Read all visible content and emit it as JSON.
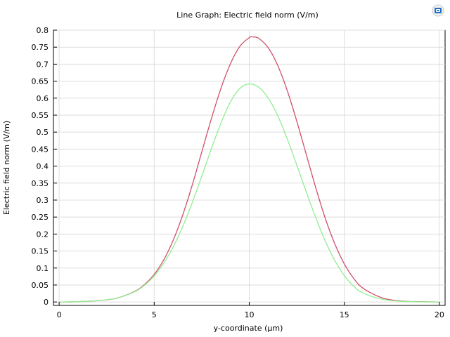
{
  "chart_data": {
    "type": "line",
    "title": "Line Graph: Electric field norm (V/m)",
    "xlabel": "y-coordinate (µm)",
    "ylabel": "Electric field norm (V/m)",
    "xlim": [
      -0.3,
      20.3
    ],
    "ylim": [
      -0.01,
      0.8
    ],
    "x_ticks": [
      0,
      5,
      10,
      15,
      20
    ],
    "y_ticks": [
      0,
      0.05,
      0.1,
      0.15,
      0.2,
      0.25,
      0.3,
      0.35,
      0.4,
      0.45,
      0.5,
      0.55,
      0.6,
      0.65,
      0.7,
      0.75,
      0.8
    ],
    "grid": true,
    "legend": "none",
    "series": [
      {
        "color": "#d0506a",
        "x": [
          0,
          1,
          2,
          3,
          4,
          4.5,
          5,
          5.5,
          6,
          6.5,
          7,
          7.5,
          8,
          8.5,
          9,
          9.5,
          10,
          10.2,
          10.5,
          11,
          11.5,
          12,
          12.5,
          13,
          13.5,
          14,
          14.5,
          15,
          15.5,
          16,
          17,
          18,
          19,
          20
        ],
        "y": [
          0.0,
          0.001,
          0.004,
          0.011,
          0.032,
          0.052,
          0.081,
          0.124,
          0.182,
          0.256,
          0.344,
          0.441,
          0.538,
          0.627,
          0.7,
          0.752,
          0.778,
          0.78,
          0.776,
          0.748,
          0.696,
          0.622,
          0.532,
          0.434,
          0.336,
          0.246,
          0.171,
          0.112,
          0.069,
          0.04,
          0.012,
          0.003,
          0.001,
          0.0
        ]
      },
      {
        "color": "#90ee90",
        "x": [
          0,
          1,
          2,
          3,
          4,
          4.5,
          5,
          5.5,
          6,
          6.5,
          7,
          7.5,
          8,
          8.5,
          9,
          9.5,
          10,
          10.5,
          11,
          11.5,
          12,
          12.5,
          13,
          13.5,
          14,
          14.5,
          15,
          15.5,
          16,
          17,
          18,
          19,
          20
        ],
        "y": [
          0.0,
          0.001,
          0.004,
          0.011,
          0.031,
          0.05,
          0.077,
          0.114,
          0.162,
          0.222,
          0.292,
          0.37,
          0.45,
          0.525,
          0.588,
          0.628,
          0.642,
          0.632,
          0.6,
          0.548,
          0.48,
          0.403,
          0.324,
          0.248,
          0.179,
          0.122,
          0.078,
          0.046,
          0.026,
          0.008,
          0.002,
          0.0005,
          0.0
        ]
      }
    ]
  }
}
